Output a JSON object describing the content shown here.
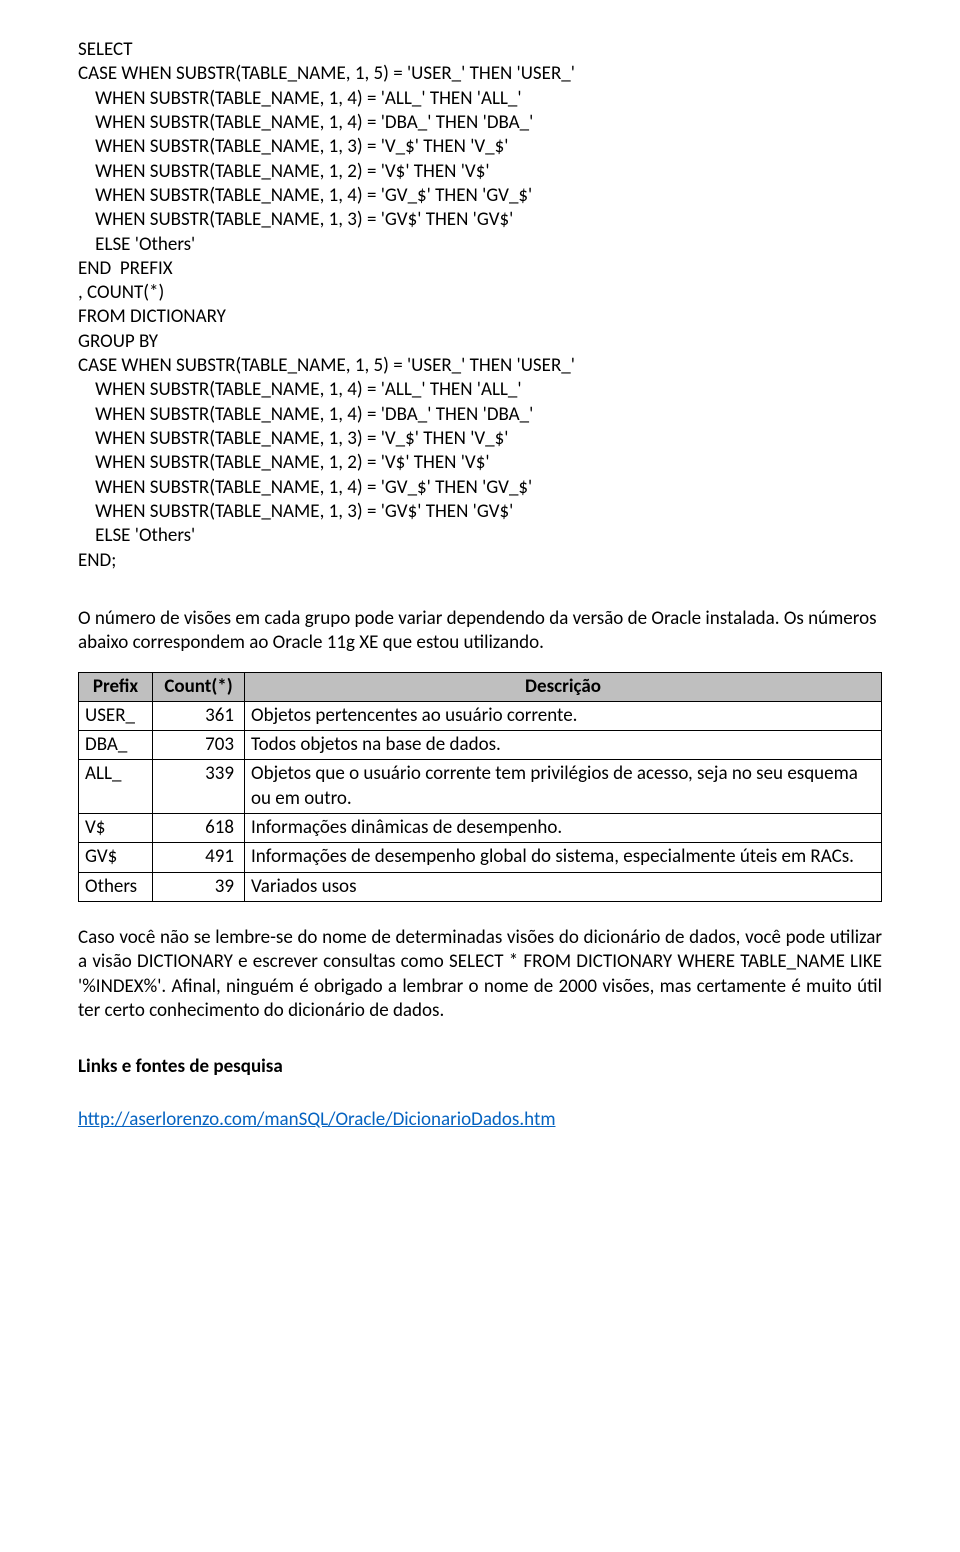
{
  "code1": "SELECT\nCASE WHEN SUBSTR(TABLE_NAME, 1, 5) = 'USER_' THEN 'USER_'\n    WHEN SUBSTR(TABLE_NAME, 1, 4) = 'ALL_' THEN 'ALL_'\n    WHEN SUBSTR(TABLE_NAME, 1, 4) = 'DBA_' THEN 'DBA_'\n    WHEN SUBSTR(TABLE_NAME, 1, 3) = 'V_$' THEN 'V_$'\n    WHEN SUBSTR(TABLE_NAME, 1, 2) = 'V$' THEN 'V$'\n    WHEN SUBSTR(TABLE_NAME, 1, 4) = 'GV_$' THEN 'GV_$'\n    WHEN SUBSTR(TABLE_NAME, 1, 3) = 'GV$' THEN 'GV$'\n    ELSE 'Others'\nEND  PREFIX\n, COUNT(*)\nFROM DICTIONARY\nGROUP BY\nCASE WHEN SUBSTR(TABLE_NAME, 1, 5) = 'USER_' THEN 'USER_'\n    WHEN SUBSTR(TABLE_NAME, 1, 4) = 'ALL_' THEN 'ALL_'\n    WHEN SUBSTR(TABLE_NAME, 1, 4) = 'DBA_' THEN 'DBA_'\n    WHEN SUBSTR(TABLE_NAME, 1, 3) = 'V_$' THEN 'V_$'\n    WHEN SUBSTR(TABLE_NAME, 1, 2) = 'V$' THEN 'V$'\n    WHEN SUBSTR(TABLE_NAME, 1, 4) = 'GV_$' THEN 'GV_$'\n    WHEN SUBSTR(TABLE_NAME, 1, 3) = 'GV$' THEN 'GV$'\n    ELSE 'Others'\nEND;",
  "para1": "O número de visões em cada grupo pode variar dependendo da versão de Oracle instalada. Os números abaixo correspondem ao Oracle 11g XE que estou utilizando.",
  "table": {
    "headers": {
      "c1": "Prefix",
      "c2": "Count(*)",
      "c3": "Descrição"
    },
    "rows": [
      {
        "prefix": "USER_",
        "count": "361",
        "desc": "Objetos pertencentes ao usuário corrente."
      },
      {
        "prefix": "DBA_",
        "count": "703",
        "desc": "Todos objetos na base de dados."
      },
      {
        "prefix": "ALL_",
        "count": "339",
        "desc": "Objetos que o usuário corrente tem privilégios de acesso, seja no seu esquema ou em outro."
      },
      {
        "prefix": "V$",
        "count": "618",
        "desc": "Informações dinâmicas de desempenho."
      },
      {
        "prefix": "GV$",
        "count": "491",
        "desc": "Informações de desempenho global do sistema, especialmente úteis em RACs."
      },
      {
        "prefix": "Others",
        "count": "39",
        "desc": "Variados usos"
      }
    ]
  },
  "para2": "Caso você não se lembre-se do nome de determinadas visões do dicionário de dados, você pode utilizar a visão DICTIONARY e escrever consultas como SELECT * FROM DICTIONARY WHERE TABLE_NAME LIKE '%INDEX%'. Afinal, ninguém é obrigado a lembrar o nome de 2000 visões, mas certamente é muito útil ter certo conhecimento do dicionário de dados.",
  "linksHeading": "Links e fontes de pesquisa",
  "link1": "http://aserlorenzo.com/manSQL/Oracle/DicionarioDados.htm"
}
